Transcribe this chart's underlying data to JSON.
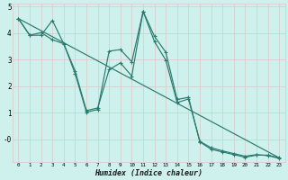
{
  "xlabel": "Humidex (Indice chaleur)",
  "bg_color": "#cff1ee",
  "grid_color": "#d8cece",
  "line_color": "#2a7a6e",
  "x_data": [
    0,
    1,
    2,
    3,
    4,
    5,
    6,
    7,
    8,
    9,
    10,
    11,
    12,
    13,
    14,
    15,
    16,
    17,
    18,
    19,
    20,
    21,
    22,
    23
  ],
  "line1": [
    4.55,
    3.92,
    3.92,
    4.48,
    3.6,
    2.48,
    1.02,
    1.12,
    3.32,
    3.38,
    2.92,
    4.82,
    3.88,
    3.28,
    1.5,
    1.58,
    -0.1,
    -0.38,
    -0.48,
    -0.58,
    -0.68,
    -0.6,
    -0.6,
    -0.7
  ],
  "line2": [
    4.55,
    3.92,
    4.02,
    3.75,
    3.6,
    2.58,
    1.08,
    1.18,
    2.62,
    2.88,
    2.38,
    4.82,
    3.68,
    2.98,
    1.38,
    1.52,
    -0.08,
    -0.32,
    -0.44,
    -0.54,
    -0.64,
    -0.58,
    -0.62,
    -0.72
  ],
  "line3_x": [
    0,
    23
  ],
  "line3_y": [
    4.55,
    -0.7
  ],
  "ylim": [
    -0.85,
    5.1
  ],
  "xlim": [
    -0.5,
    23.5
  ],
  "ytick_labels": [
    "-0",
    "1",
    "2",
    "3",
    "4",
    "5"
  ],
  "ytick_vals": [
    0,
    1,
    2,
    3,
    4,
    5
  ]
}
